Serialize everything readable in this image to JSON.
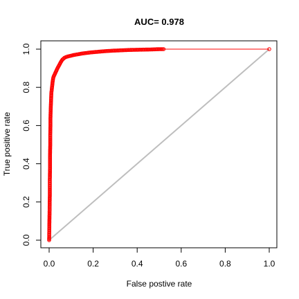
{
  "chart_data": {
    "type": "line",
    "title": "AUC= 0.978",
    "xlabel": "False postive rate",
    "ylabel": "True positive rate",
    "xlim": [
      0,
      1
    ],
    "ylim": [
      0,
      1
    ],
    "x_ticks": [
      "0.0",
      "0.2",
      "0.4",
      "0.6",
      "0.8",
      "1.0"
    ],
    "y_ticks": [
      "0.0",
      "0.2",
      "0.4",
      "0.6",
      "0.8",
      "1.0"
    ],
    "grid": false,
    "legend": "none",
    "series": [
      {
        "role": "roc-curve",
        "color": "#ff0000",
        "marker": "open-circle",
        "x": [
          0.0,
          0.001,
          0.002,
          0.003,
          0.003,
          0.004,
          0.004,
          0.005,
          0.005,
          0.006,
          0.006,
          0.007,
          0.008,
          0.009,
          0.01,
          0.012,
          0.014,
          0.016,
          0.018,
          0.02,
          0.024,
          0.028,
          0.032,
          0.038,
          0.045,
          0.052,
          0.06,
          0.07,
          0.08,
          0.09,
          0.1,
          0.115,
          0.13,
          0.15,
          0.17,
          0.19,
          0.22,
          0.25,
          0.29,
          0.33,
          0.37,
          0.41,
          0.45,
          0.48,
          0.5,
          0.52,
          1.0
        ],
        "y": [
          0.0,
          0.08,
          0.15,
          0.23,
          0.3,
          0.38,
          0.44,
          0.5,
          0.55,
          0.6,
          0.64,
          0.68,
          0.71,
          0.74,
          0.77,
          0.79,
          0.81,
          0.83,
          0.845,
          0.855,
          0.865,
          0.875,
          0.885,
          0.9,
          0.915,
          0.93,
          0.945,
          0.955,
          0.96,
          0.963,
          0.966,
          0.97,
          0.973,
          0.977,
          0.98,
          0.983,
          0.986,
          0.989,
          0.992,
          0.994,
          0.996,
          0.997,
          0.998,
          0.999,
          1.0,
          1.0,
          1.0
        ]
      },
      {
        "role": "diagonal-reference",
        "color": "#bebebe",
        "x": [
          0,
          1
        ],
        "y": [
          0,
          1
        ]
      }
    ]
  }
}
